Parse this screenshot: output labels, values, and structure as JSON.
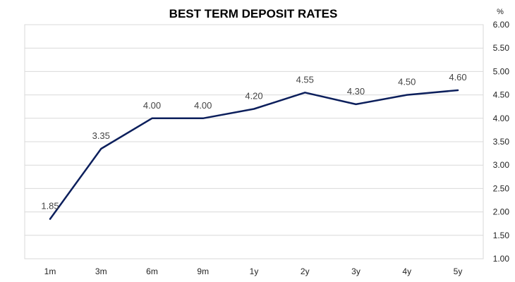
{
  "chart_data": {
    "type": "line",
    "title": "BEST TERM DEPOSIT RATES",
    "ylabel": "%",
    "xlabel": "",
    "categories": [
      "1m",
      "3m",
      "6m",
      "9m",
      "1y",
      "2y",
      "3y",
      "4y",
      "5y"
    ],
    "series": [
      {
        "values": [
          1.85,
          3.35,
          4.0,
          4.0,
          4.2,
          4.55,
          4.3,
          4.5,
          4.6
        ]
      }
    ],
    "data_labels": [
      "1.85",
      "3.35",
      "4.00",
      "4.00",
      "4.20",
      "4.55",
      "4.30",
      "4.50",
      "4.60"
    ],
    "ylim": [
      1.0,
      6.0
    ],
    "yticks": [
      "1.00",
      "1.50",
      "2.00",
      "2.50",
      "3.00",
      "3.50",
      "4.00",
      "4.50",
      "5.00",
      "5.50",
      "6.00"
    ],
    "grid": true,
    "y_axis_side": "right",
    "colors": {
      "series": "#0c1f5c",
      "grid": "#d9d9d9"
    }
  }
}
